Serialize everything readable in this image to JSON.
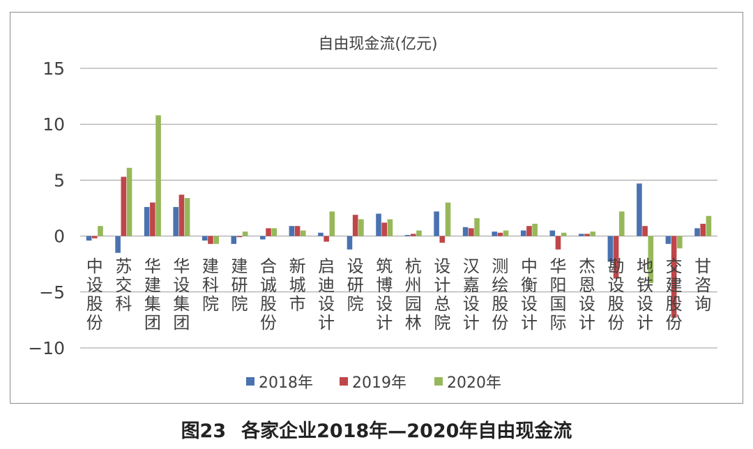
{
  "caption": {
    "figure_no": "图23",
    "text": "各家企业2018年—2020年自由现金流"
  },
  "chart_data": {
    "type": "bar",
    "title": "自由现金流(亿元)",
    "xlabel": "",
    "ylabel": "",
    "ylim": [
      -10,
      15
    ],
    "yticks": [
      15,
      10,
      5,
      0,
      -5,
      -10
    ],
    "ytick_labels": [
      "15",
      "10",
      "5",
      "0",
      "−5",
      "−10"
    ],
    "grid": true,
    "legend_position": "bottom",
    "categories": [
      "中设股份",
      "苏交科",
      "华建集团",
      "华设集团",
      "建科院",
      "建研院",
      "合诚股份",
      "新城市",
      "启迪设计",
      "设研院",
      "筑博设计",
      "杭州园林",
      "设计总院",
      "汉嘉设计",
      "测绘股份",
      "中衡设计",
      "华阳国际",
      "杰恩设计",
      "勘设股份",
      "地铁设计",
      "交建股份",
      "甘咨询"
    ],
    "series": [
      {
        "name": "2018年",
        "color": "#4a72b0",
        "values": [
          -0.4,
          -1.5,
          2.6,
          2.6,
          -0.4,
          -0.7,
          -0.3,
          0.9,
          0.3,
          -1.2,
          2.0,
          0.1,
          2.2,
          0.8,
          0.4,
          0.5,
          0.5,
          0.2,
          -2.3,
          4.7,
          -0.7,
          0.7
        ]
      },
      {
        "name": "2019年",
        "color": "#bf4649",
        "values": [
          -0.2,
          5.3,
          3.0,
          3.7,
          -0.7,
          -0.1,
          0.7,
          0.9,
          -0.5,
          1.9,
          1.2,
          0.2,
          -0.6,
          0.7,
          0.3,
          0.9,
          -1.2,
          0.2,
          -3.8,
          0.9,
          -7.3,
          1.1
        ]
      },
      {
        "name": "2020年",
        "color": "#97b85a",
        "values": [
          0.9,
          6.1,
          10.8,
          3.4,
          -0.7,
          0.4,
          0.7,
          0.5,
          2.2,
          1.5,
          1.5,
          0.5,
          3.0,
          1.6,
          0.5,
          1.1,
          0.3,
          0.4,
          2.2,
          -4.2,
          -1.1,
          1.8
        ]
      }
    ]
  }
}
